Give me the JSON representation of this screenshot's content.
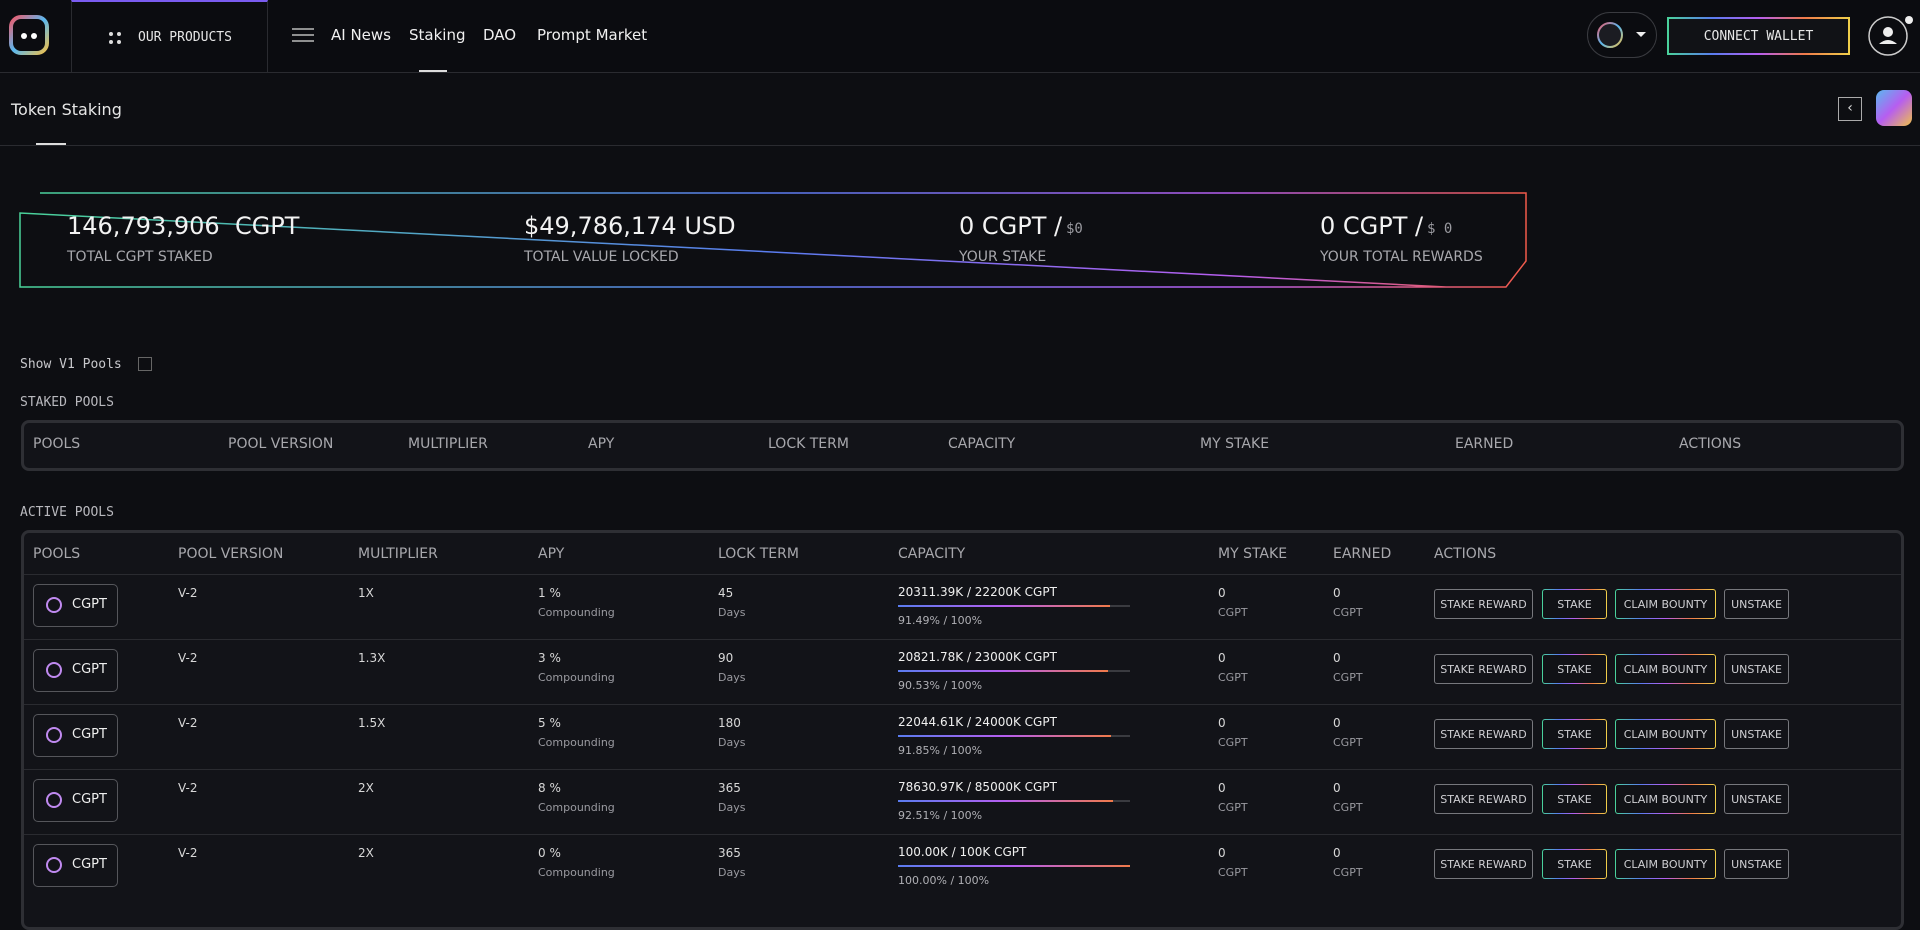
{
  "nav": {
    "products": "OUR PRODUCTS",
    "links": [
      "AI News",
      "Staking",
      "DAO",
      "Prompt Market"
    ],
    "connect": "CONNECT WALLET"
  },
  "page_title": "Token Staking",
  "stats": [
    {
      "value": "146,793,906  CGPT",
      "label": "TOTAL CGPT STAKED"
    },
    {
      "value": "$49,786,174 USD",
      "label": "TOTAL VALUE LOCKED"
    },
    {
      "value": "0 CGPT /",
      "sub": "$0",
      "label": "YOUR STAKE"
    },
    {
      "value": "0 CGPT /",
      "sub": "$ 0",
      "label": "YOUR TOTAL REWARDS"
    }
  ],
  "show_v1": "Show V1 Pools",
  "staked_pools": {
    "title": "STAKED POOLS",
    "headers": [
      "POOLS",
      "POOL VERSION",
      "MULTIPLIER",
      "APY",
      "LOCK TERM",
      "CAPACITY",
      "MY STAKE",
      "EARNED",
      "ACTIONS"
    ]
  },
  "active_pools": {
    "title": "ACTIVE POOLS",
    "headers": [
      "POOLS",
      "POOL VERSION",
      "MULTIPLIER",
      "APY",
      "LOCK TERM",
      "CAPACITY",
      "MY STAKE",
      "EARNED",
      "ACTIONS"
    ],
    "rows": [
      {
        "pool": "CGPT",
        "version": "V-2",
        "multiplier": "1X",
        "apy": "1 %",
        "apy_note": "Compounding",
        "lock": "45",
        "lock_unit": "Days",
        "capacity": "20311.39K / 22200K CGPT",
        "progress": 91.49,
        "progress_label": "91.49% / 100%",
        "my_stake": "0",
        "my_stake_unit": "CGPT",
        "earned": "0",
        "earned_unit": "CGPT",
        "actions": [
          "STAKE REWARD",
          "STAKE",
          "CLAIM BOUNTY",
          "UNSTAKE"
        ]
      },
      {
        "pool": "CGPT",
        "version": "V-2",
        "multiplier": "1.3X",
        "apy": "3 %",
        "apy_note": "Compounding",
        "lock": "90",
        "lock_unit": "Days",
        "capacity": "20821.78K / 23000K CGPT",
        "progress": 90.53,
        "progress_label": "90.53% / 100%",
        "my_stake": "0",
        "my_stake_unit": "CGPT",
        "earned": "0",
        "earned_unit": "CGPT",
        "actions": [
          "STAKE REWARD",
          "STAKE",
          "CLAIM BOUNTY",
          "UNSTAKE"
        ]
      },
      {
        "pool": "CGPT",
        "version": "V-2",
        "multiplier": "1.5X",
        "apy": "5 %",
        "apy_note": "Compounding",
        "lock": "180",
        "lock_unit": "Days",
        "capacity": "22044.61K / 24000K CGPT",
        "progress": 91.85,
        "progress_label": "91.85% / 100%",
        "my_stake": "0",
        "my_stake_unit": "CGPT",
        "earned": "0",
        "earned_unit": "CGPT",
        "actions": [
          "STAKE REWARD",
          "STAKE",
          "CLAIM BOUNTY",
          "UNSTAKE"
        ]
      },
      {
        "pool": "CGPT",
        "version": "V-2",
        "multiplier": "2X",
        "apy": "8 %",
        "apy_note": "Compounding",
        "lock": "365",
        "lock_unit": "Days",
        "capacity": "78630.97K / 85000K CGPT",
        "progress": 92.51,
        "progress_label": "92.51% / 100%",
        "my_stake": "0",
        "my_stake_unit": "CGPT",
        "earned": "0",
        "earned_unit": "CGPT",
        "actions": [
          "STAKE REWARD",
          "STAKE",
          "CLAIM BOUNTY",
          "UNSTAKE"
        ]
      },
      {
        "pool": "CGPT",
        "version": "V-2",
        "multiplier": "2X",
        "apy": "0 %",
        "apy_note": "Compounding",
        "lock": "365",
        "lock_unit": "Days",
        "capacity": "100.00K / 100K CGPT",
        "progress": 100,
        "progress_label": "100.00% / 100%",
        "my_stake": "0",
        "my_stake_unit": "CGPT",
        "earned": "0",
        "earned_unit": "CGPT",
        "actions": [
          "STAKE REWARD",
          "STAKE",
          "CLAIM BOUNTY",
          "UNSTAKE"
        ]
      }
    ]
  }
}
